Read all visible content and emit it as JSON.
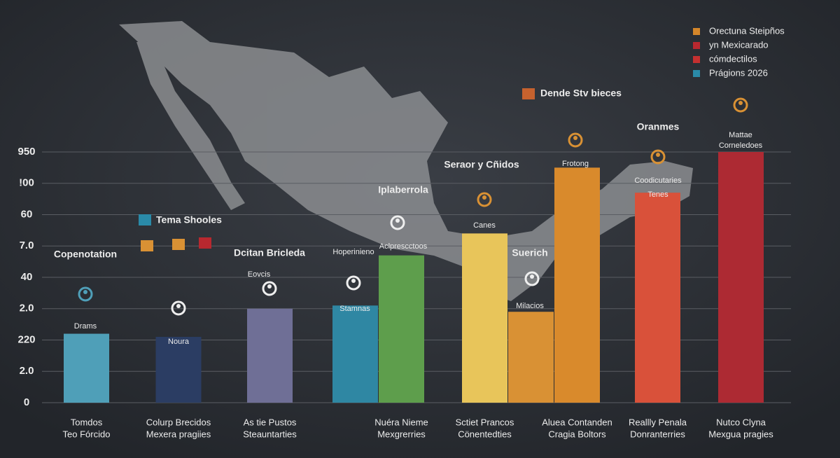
{
  "chart_data": {
    "type": "bar",
    "ylim": [
      0,
      8
    ],
    "yticks": [
      0,
      {
        "value": 1,
        "label": "2.0"
      },
      {
        "value": 2,
        "label": "220"
      },
      {
        "value": 3,
        "label": "2.0"
      },
      {
        "value": 4,
        "label": "40"
      },
      {
        "value": 5,
        "label": "7.0"
      },
      {
        "value": 6,
        "label": "60"
      },
      {
        "value": 7,
        "label": "!00"
      },
      {
        "value": 8,
        "label": "950"
      }
    ],
    "grid": true,
    "values": [
      2.2,
      2.1,
      3.0,
      3.1,
      4.7,
      5.4,
      2.9,
      7.5,
      6.7,
      8.0
    ],
    "colors": [
      "#4f9fb8",
      "#2b3d63",
      "#6f6f96",
      "#2f87a3",
      "#5e9e4c",
      "#e8c55a",
      "#d99134",
      "#d98a2c",
      "#d9513a",
      "#ad2a33"
    ],
    "categories": [
      [
        "Tomdos",
        "Teo Fórcido"
      ],
      [
        "Colurp Brecidos",
        "Mexera pragiies"
      ],
      [
        "As tie Pustos",
        "Steauntarties"
      ],
      null,
      [
        "Nuéra Nieme",
        "Mexgrerries"
      ],
      [
        "Sctiet Prancos",
        "Cönentedties"
      ],
      null,
      [
        "Aluea Contanden",
        "Cragia Boltors"
      ],
      [
        "Reallly Penala",
        "Donranterries"
      ],
      [
        "Nutco Clyna",
        "Mexgua pragies"
      ]
    ],
    "annotations": [
      "Copenotation",
      "Tema Shooles",
      "Dcitan Bricleda",
      "Eovcis",
      "Hoperinieno",
      "Iplaberrola",
      "Aclprescctoos",
      "Seraor y Cñidos",
      "Canes",
      "Suerich",
      "Milacios",
      "Dende Stv bieces",
      "Frotong",
      "Oranmes",
      "Coodicutaries",
      "Tenes",
      "Mattae",
      "Corneledoes",
      "Drams",
      "Noura",
      "Stamnas"
    ],
    "legend": [
      {
        "name": "Orectuna Steipños",
        "color": "#d4862a"
      },
      {
        "name": "yn Mexicarado",
        "color": "#b8282f"
      },
      {
        "name": "cómdectilos",
        "color": "#c53030"
      },
      {
        "name": "Prágions 2026",
        "color": "#2a8aa8"
      }
    ],
    "legend_position": "top-right"
  }
}
